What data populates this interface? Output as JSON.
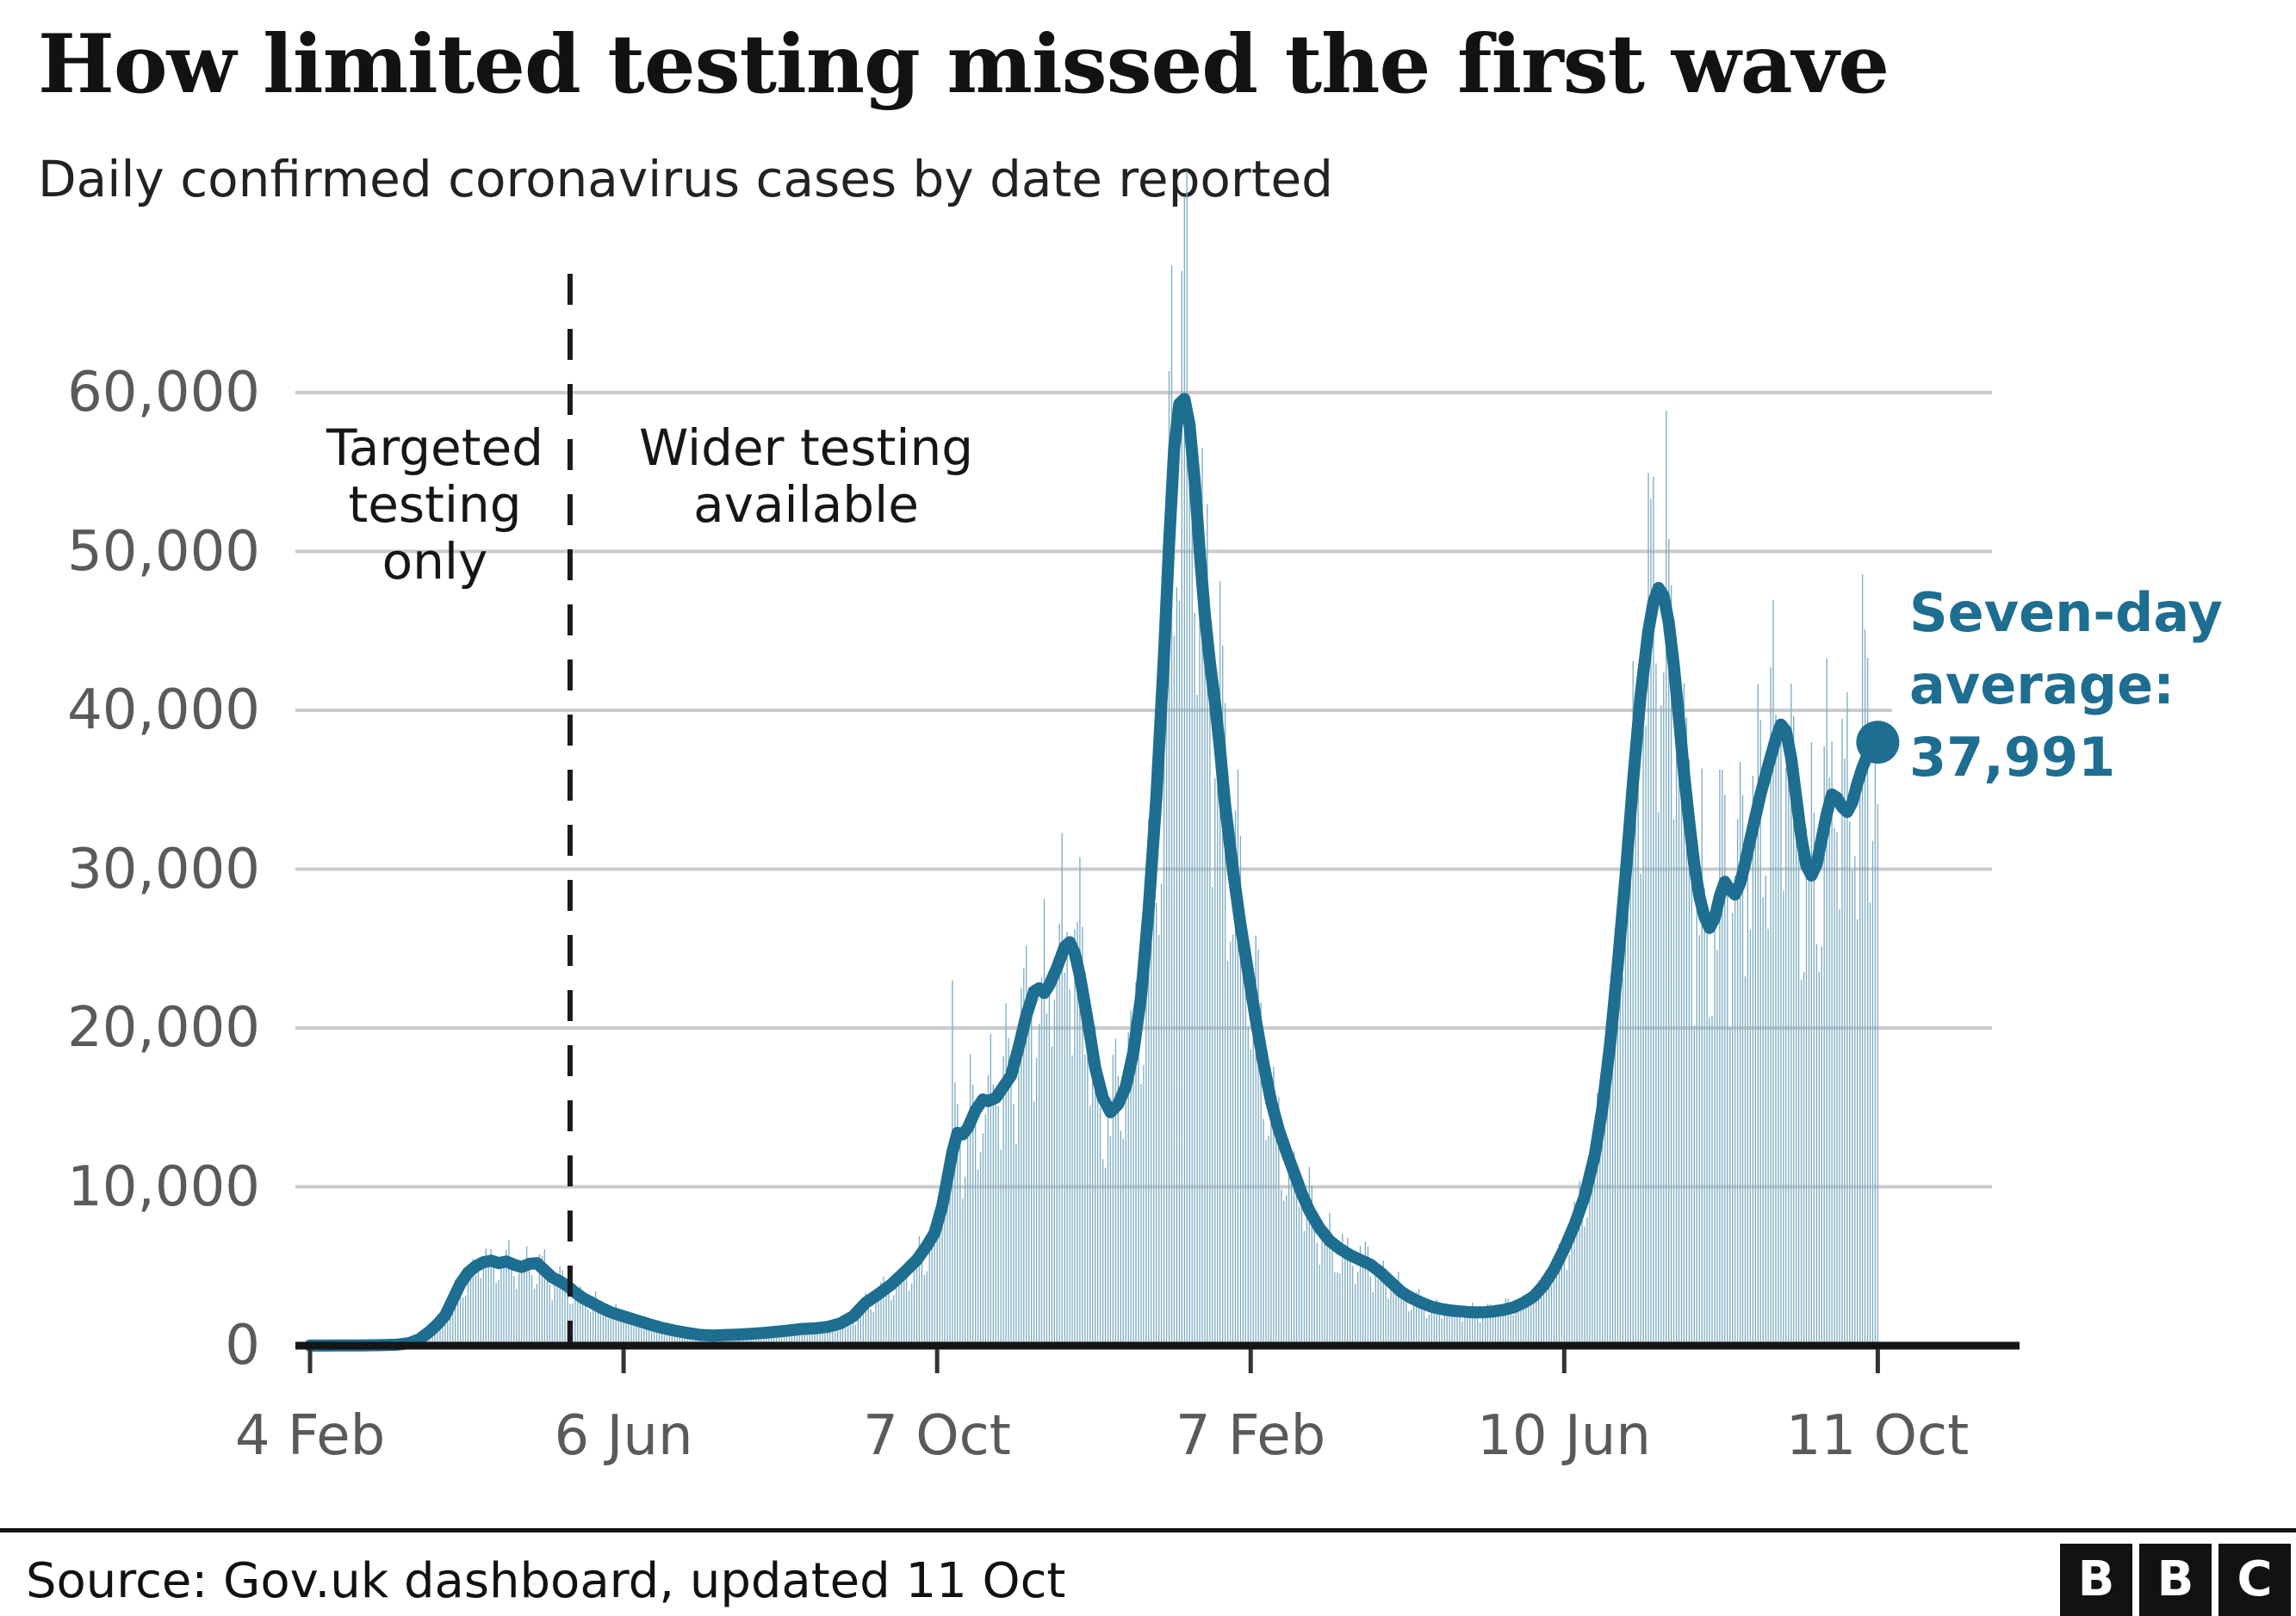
{
  "header": {
    "title": "How limited testing missed the first wave",
    "subtitle": "Daily confirmed coronavirus cases by date reported"
  },
  "annotations": {
    "targeted": {
      "line1": "Targeted",
      "line2": "testing",
      "line3": "only"
    },
    "wider": {
      "line1": "Wider testing",
      "line2": "available"
    },
    "seven_day": {
      "line1": "Seven-day",
      "line2": "average:",
      "value": "37,991"
    }
  },
  "axis": {
    "y_labels": [
      "60,000",
      "50,000",
      "40,000",
      "30,000",
      "20,000",
      "10,000",
      "0"
    ],
    "x_labels": [
      "4 Feb",
      "6 Jun",
      "7 Oct",
      "7 Feb",
      "10 Jun",
      "11 Oct"
    ]
  },
  "footer": {
    "source": "Source: Gov.uk dashboard, updated 11 Oct",
    "logo_b1": "B",
    "logo_b2": "B",
    "logo_c": "C"
  },
  "colors": {
    "line": "#1d6e91",
    "bars": "#7fadc2",
    "grid": "#cbcbcb",
    "axis": "#151515",
    "divider": "#1a1a1a",
    "annotation_text": "#1d6e91",
    "label_gray": "#5a5a5a"
  },
  "chart_data": {
    "type": "bar+line",
    "title": "How limited testing missed the first wave",
    "subtitle": "Daily confirmed coronavirus cases by date reported",
    "x_domain_days": [
      0,
      615
    ],
    "x_tick_days": [
      0,
      123,
      246,
      369,
      492,
      615
    ],
    "x_tick_labels": [
      "4 Feb",
      "6 Jun",
      "7 Oct",
      "7 Feb",
      "10 Jun",
      "11 Oct"
    ],
    "y_axis": {
      "min": 0,
      "max": 60000,
      "tick_step": 10000,
      "grid": true,
      "clipped_gridline_value": 40000
    },
    "divider_day": 102,
    "series": [
      {
        "name": "Seven-day average",
        "final_value": 37991,
        "points": [
          [
            0,
            8
          ],
          [
            10,
            10
          ],
          [
            20,
            15
          ],
          [
            28,
            30
          ],
          [
            34,
            60
          ],
          [
            39,
            160
          ],
          [
            43,
            420
          ],
          [
            47,
            900
          ],
          [
            50,
            1350
          ],
          [
            53,
            1900
          ],
          [
            56,
            2900
          ],
          [
            59,
            3900
          ],
          [
            62,
            4600
          ],
          [
            65,
            5000
          ],
          [
            68,
            5250
          ],
          [
            71,
            5350
          ],
          [
            74,
            5200
          ],
          [
            77,
            5300
          ],
          [
            80,
            5100
          ],
          [
            83,
            4950
          ],
          [
            86,
            5150
          ],
          [
            89,
            5200
          ],
          [
            92,
            4750
          ],
          [
            95,
            4300
          ],
          [
            98,
            4050
          ],
          [
            101,
            3750
          ],
          [
            104,
            3350
          ],
          [
            107,
            3000
          ],
          [
            110,
            2750
          ],
          [
            114,
            2400
          ],
          [
            118,
            2100
          ],
          [
            123,
            1850
          ],
          [
            128,
            1600
          ],
          [
            133,
            1350
          ],
          [
            138,
            1120
          ],
          [
            143,
            950
          ],
          [
            148,
            800
          ],
          [
            153,
            680
          ],
          [
            158,
            640
          ],
          [
            163,
            670
          ],
          [
            168,
            700
          ],
          [
            173,
            740
          ],
          [
            178,
            800
          ],
          [
            183,
            880
          ],
          [
            188,
            960
          ],
          [
            193,
            1050
          ],
          [
            198,
            1090
          ],
          [
            203,
            1180
          ],
          [
            208,
            1400
          ],
          [
            213,
            1850
          ],
          [
            218,
            2700
          ],
          [
            223,
            3250
          ],
          [
            228,
            3850
          ],
          [
            233,
            4600
          ],
          [
            238,
            5400
          ],
          [
            242,
            6300
          ],
          [
            245,
            7100
          ],
          [
            248,
            8800
          ],
          [
            250,
            10500
          ],
          [
            252,
            12200
          ],
          [
            254,
            13400
          ],
          [
            256,
            13300
          ],
          [
            258,
            13700
          ],
          [
            261,
            14800
          ],
          [
            264,
            15500
          ],
          [
            266,
            15400
          ],
          [
            269,
            15600
          ],
          [
            272,
            16300
          ],
          [
            275,
            17000
          ],
          [
            278,
            18800
          ],
          [
            281,
            20800
          ],
          [
            284,
            22300
          ],
          [
            286,
            22500
          ],
          [
            288,
            22200
          ],
          [
            290,
            22700
          ],
          [
            293,
            23800
          ],
          [
            296,
            25100
          ],
          [
            298,
            25400
          ],
          [
            300,
            24700
          ],
          [
            302,
            23300
          ],
          [
            305,
            20500
          ],
          [
            308,
            17500
          ],
          [
            311,
            15600
          ],
          [
            314,
            14700
          ],
          [
            317,
            15200
          ],
          [
            320,
            16300
          ],
          [
            323,
            18500
          ],
          [
            326,
            22000
          ],
          [
            329,
            27500
          ],
          [
            332,
            34500
          ],
          [
            335,
            43500
          ],
          [
            337,
            50500
          ],
          [
            339,
            56500
          ],
          [
            341,
            59300
          ],
          [
            343,
            59600
          ],
          [
            345,
            58000
          ],
          [
            347,
            54500
          ],
          [
            349,
            50000
          ],
          [
            351,
            46000
          ],
          [
            353,
            43000
          ],
          [
            355,
            40500
          ],
          [
            357,
            37500
          ],
          [
            359,
            34000
          ],
          [
            362,
            30000
          ],
          [
            365,
            26500
          ],
          [
            368,
            23500
          ],
          [
            371,
            20500
          ],
          [
            374,
            17800
          ],
          [
            377,
            15400
          ],
          [
            380,
            13600
          ],
          [
            383,
            12200
          ],
          [
            386,
            10900
          ],
          [
            389,
            9600
          ],
          [
            392,
            8500
          ],
          [
            396,
            7400
          ],
          [
            400,
            6600
          ],
          [
            404,
            6100
          ],
          [
            408,
            5700
          ],
          [
            412,
            5400
          ],
          [
            416,
            5100
          ],
          [
            420,
            4600
          ],
          [
            424,
            4000
          ],
          [
            428,
            3400
          ],
          [
            432,
            3000
          ],
          [
            436,
            2700
          ],
          [
            440,
            2450
          ],
          [
            444,
            2300
          ],
          [
            448,
            2200
          ],
          [
            452,
            2150
          ],
          [
            456,
            2100
          ],
          [
            460,
            2100
          ],
          [
            464,
            2150
          ],
          [
            468,
            2250
          ],
          [
            472,
            2400
          ],
          [
            476,
            2700
          ],
          [
            480,
            3100
          ],
          [
            484,
            3800
          ],
          [
            488,
            4800
          ],
          [
            492,
            6100
          ],
          [
            496,
            7600
          ],
          [
            500,
            9400
          ],
          [
            504,
            12000
          ],
          [
            507,
            15000
          ],
          [
            510,
            19000
          ],
          [
            513,
            24000
          ],
          [
            516,
            29500
          ],
          [
            519,
            35500
          ],
          [
            522,
            41000
          ],
          [
            525,
            45000
          ],
          [
            527,
            46800
          ],
          [
            529,
            47700
          ],
          [
            531,
            47200
          ],
          [
            533,
            45500
          ],
          [
            535,
            42800
          ],
          [
            537,
            39500
          ],
          [
            539,
            36000
          ],
          [
            541,
            33000
          ],
          [
            543,
            30300
          ],
          [
            545,
            28300
          ],
          [
            547,
            27000
          ],
          [
            549,
            26300
          ],
          [
            551,
            26900
          ],
          [
            553,
            28300
          ],
          [
            555,
            29200
          ],
          [
            557,
            28700
          ],
          [
            559,
            28400
          ],
          [
            561,
            29100
          ],
          [
            563,
            30400
          ],
          [
            565,
            31900
          ],
          [
            567,
            33300
          ],
          [
            569,
            34700
          ],
          [
            572,
            36500
          ],
          [
            575,
            38200
          ],
          [
            577,
            39100
          ],
          [
            579,
            38700
          ],
          [
            581,
            37000
          ],
          [
            583,
            34500
          ],
          [
            585,
            32000
          ],
          [
            587,
            30200
          ],
          [
            589,
            29600
          ],
          [
            591,
            30300
          ],
          [
            593,
            31900
          ],
          [
            595,
            33500
          ],
          [
            597,
            34700
          ],
          [
            599,
            34500
          ],
          [
            601,
            33900
          ],
          [
            603,
            33600
          ],
          [
            605,
            34200
          ],
          [
            607,
            35400
          ],
          [
            609,
            36400
          ],
          [
            611,
            37200
          ],
          [
            613,
            37700
          ],
          [
            615,
            37991
          ]
        ]
      }
    ],
    "daily_bars": {
      "description": "Daily confirmed cases: thin bar per day, scattered around the seven-day average",
      "weekly_amplitude": 0.2,
      "random_amplitude": 0.16,
      "weekly_phase": 1.1,
      "outlier_bars": [
        [
          252,
          23000
        ],
        [
          338,
          68000
        ],
        [
          527,
          54700
        ]
      ]
    },
    "annotation": {
      "label": "Seven-day average:",
      "value": 37991
    }
  }
}
